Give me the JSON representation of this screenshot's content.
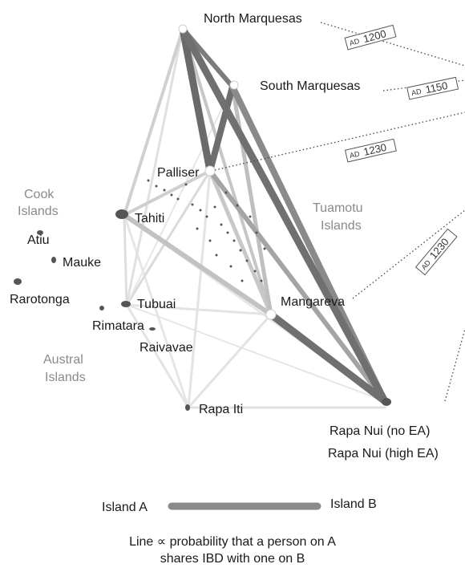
{
  "islands": {
    "north_marquesas": "North Marquesas",
    "south_marquesas": "South Marquesas",
    "palliser": "Palliser",
    "tahiti": "Tahiti",
    "atiu": "Atiu",
    "mauke": "Mauke",
    "rarotonga": "Rarotonga",
    "tubuai": "Tubuai",
    "rimatara": "Rimatara",
    "raivavae": "Raivavae",
    "mangareva": "Mangareva",
    "rapa_iti": "Rapa Iti",
    "rapa_nui_no_ea": "Rapa Nui (no EA)",
    "rapa_nui_high_ea": "Rapa Nui (high EA)"
  },
  "regions": {
    "cook_line1": "Cook",
    "cook_line2": "Islands",
    "tuamotu_line1": "Tuamotu",
    "tuamotu_line2": "Islands",
    "austral_line1": "Austral",
    "austral_line2": "Islands"
  },
  "dates": {
    "prefix": "AD",
    "d1": "1200",
    "d2": "1150",
    "d3": "1230",
    "d4": "1230"
  },
  "legend": {
    "island_a": "Island A",
    "island_b": "Island B",
    "caption_line1": "Line ∝ probability that a person on A",
    "caption_line2": "shares IBD with one on B"
  },
  "colors": {
    "strong": "#6e6e6e",
    "medium": "#9a9a9a",
    "weak": "#c4c4c4",
    "faint": "#e0e0e0",
    "land": "#555555"
  }
}
